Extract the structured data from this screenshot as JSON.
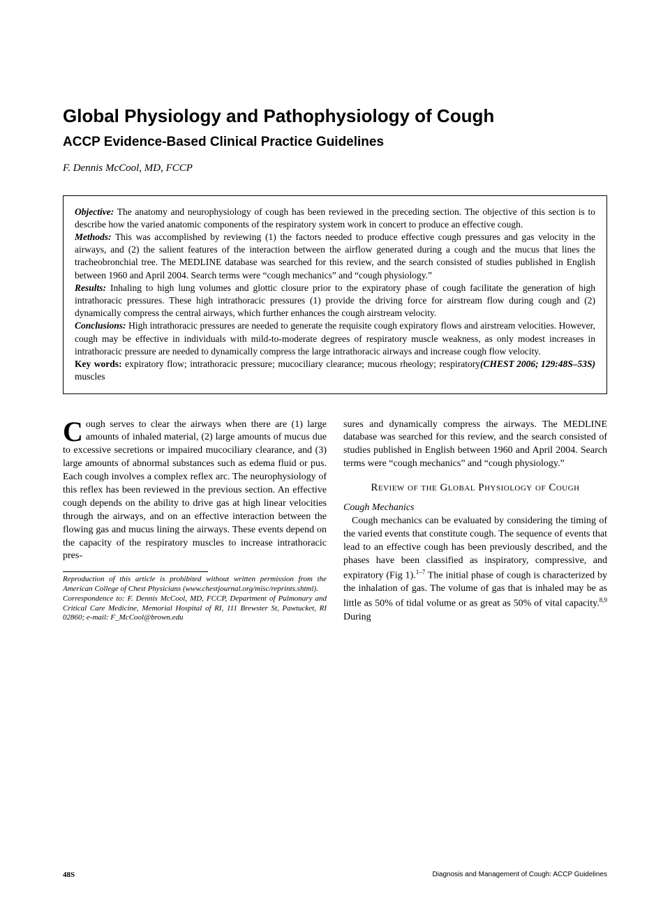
{
  "title": "Global Physiology and Pathophysiology of Cough",
  "subtitle": "ACCP Evidence-Based Clinical Practice Guidelines",
  "authors": "F. Dennis McCool, MD, FCCP",
  "abstract": {
    "objective_label": "Objective:",
    "objective": " The anatomy and neurophysiology of cough has been reviewed in the preceding section. The objective of this section is to describe how the varied anatomic components of the respiratory system work in concert to produce an effective cough.",
    "methods_label": "Methods:",
    "methods": " This was accomplished by reviewing (1) the factors needed to produce effective cough pressures and gas velocity in the airways, and (2) the salient features of the interaction between the airflow generated during a cough and the mucus that lines the tracheobronchial tree. The MEDLINE database was searched for this review, and the search consisted of studies published in English between 1960 and April 2004. Search terms were “cough mechanics” and “cough physiology.”",
    "results_label": "Results:",
    "results": " Inhaling to high lung volumes and glottic closure prior to the expiratory phase of cough facilitate the generation of high intrathoracic pressures. These high intrathoracic pressures (1) provide the driving force for airstream flow during cough and (2) dynamically compress the central airways, which further enhances the cough airstream velocity.",
    "conclusions_label": "Conclusions:",
    "conclusions": " High intrathoracic pressures are needed to generate the requisite cough expiratory flows and airstream velocities. However, cough may be effective in individuals with mild-to-moderate degrees of respiratory muscle weakness, as only modest increases in intrathoracic pressure are needed to dynamically compress the large intrathoracic airways and increase cough flow velocity.",
    "citation": "(CHEST 2006; 129:48S–53S)",
    "keywords_label": "Key words:",
    "keywords": " expiratory flow; intrathoracic pressure; mucociliary clearance; mucous rheology; respiratory muscles"
  },
  "body": {
    "dropcap": "C",
    "col1_p1": "ough serves to clear the airways when there are (1) large amounts of inhaled material, (2) large amounts of mucus due to excessive secretions or impaired mucociliary clearance, and (3) large amounts of abnormal substances such as edema fluid or pus. Each cough involves a complex reflex arc. The neurophysiology of this reflex has been reviewed in the previous section. An effective cough depends on the ability to drive gas at high linear velocities through the airways, and on an effective interaction between the flowing gas and mucus lining the airways. These events depend on the capacity of the respiratory muscles to increase intrathoracic pres-",
    "col2_p1": "sures and dynamically compress the airways. The MEDLINE database was searched for this review, and the search consisted of studies published in English between 1960 and April 2004. Search terms were “cough mechanics” and “cough physiology.”",
    "section_heading": "Review of the Global Physiology of Cough",
    "subsection": "Cough Mechanics",
    "col2_p2a": "Cough mechanics can be evaluated by considering the timing of the varied events that constitute cough. The sequence of events that lead to an effective cough has been previously described, and the phases have been classified as inspiratory, compressive, and expiratory (Fig 1).",
    "sup1": "1–7",
    "col2_p2b": " The initial phase of cough is characterized by the inhalation of gas. The volume of gas that is inhaled may be as little as 50% of tidal volume or as great as 50% of vital capacity.",
    "sup2": "8,9",
    "col2_p2c": " During"
  },
  "footnote": {
    "line1": "Reproduction of this article is prohibited without written permission from the American College of Chest Physicians (www.chestjournal.org/misc/reprints.shtml).",
    "line2": "Correspondence to: F. Dennis McCool, MD, FCCP, Department of Pulmonary and Critical Care Medicine, Memorial Hospital of RI, 111 Brewster St, Pawtucket, RI 02860; e-mail: F_McCool@brown.edu"
  },
  "footer": {
    "page": "48S",
    "source": "Diagnosis and Management of Cough: ACCP Guidelines"
  }
}
